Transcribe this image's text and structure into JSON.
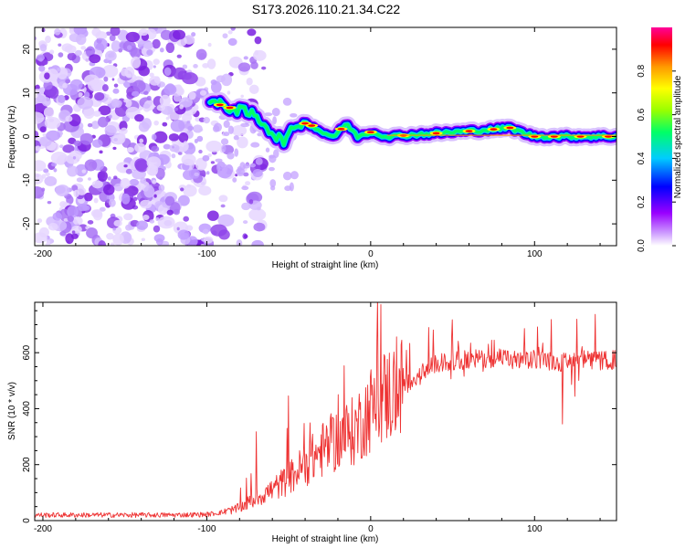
{
  "figure": {
    "title": "S173.2026.110.21.34.C22"
  },
  "chart_data": [
    {
      "type": "heatmap",
      "title": "",
      "xlabel": "Height of straight line (km)",
      "ylabel": "Frequency (Hz)",
      "xlim": [
        -205,
        150
      ],
      "ylim": [
        -25,
        25
      ],
      "xticks": [
        -200,
        -100,
        0,
        100
      ],
      "xtick_labels": [
        "-200",
        "-100",
        "0",
        "100"
      ],
      "yticks": [
        20,
        10,
        0,
        -10,
        -20
      ],
      "ytick_labels": [
        "20",
        "10",
        "0",
        "-10",
        "-20"
      ],
      "grid": false,
      "ridge": {
        "description": "high-amplitude spectral ridge",
        "x": [
          -98,
          -90,
          -80,
          -72,
          -65,
          -58,
          -52,
          -45,
          -38,
          -30,
          -22,
          -15,
          -8,
          0,
          10,
          30,
          50,
          70,
          85,
          92,
          100,
          120,
          150
        ],
        "y": [
          8,
          7,
          6,
          5,
          3,
          0,
          -1,
          3,
          3,
          1,
          0,
          3,
          0,
          1,
          0,
          0.5,
          1,
          1.5,
          2,
          1,
          0,
          0,
          0
        ]
      },
      "noise_region_x": [
        -205,
        -85
      ],
      "colorbar": {
        "label": "Normalized spectral amplitude",
        "range": [
          0,
          1
        ],
        "ticks": [
          0,
          0.2,
          0.4,
          0.6,
          0.8
        ],
        "tick_labels": [
          "0.0",
          "0.2",
          "0.4",
          "0.6",
          "0.8"
        ],
        "colormap": [
          "#ffffff",
          "#cc99ff",
          "#9900ff",
          "#0000ff",
          "#00ccff",
          "#00ff66",
          "#99ff00",
          "#ffff00",
          "#ff9900",
          "#ff0000",
          "#ff0099"
        ]
      }
    },
    {
      "type": "line",
      "title": "",
      "xlabel": "Height of straight line (km)",
      "ylabel": "SNR (10 * v/v)",
      "xlim": [
        -205,
        150
      ],
      "ylim": [
        0,
        780
      ],
      "xticks": [
        -200,
        -100,
        0,
        100
      ],
      "xtick_labels": [
        "-200",
        "-100",
        "0",
        "100"
      ],
      "yticks": [
        0,
        200,
        400,
        600
      ],
      "ytick_labels": [
        "0",
        "200",
        "400",
        "600"
      ],
      "grid": false,
      "series": [
        {
          "name": "SNR",
          "color": "#ee3333",
          "x": [
            -205,
            -180,
            -150,
            -120,
            -100,
            -90,
            -80,
            -70,
            -60,
            -50,
            -40,
            -30,
            -20,
            -10,
            0,
            5,
            10,
            20,
            30,
            40,
            50,
            60,
            70,
            80,
            90,
            100,
            110,
            120,
            130,
            140,
            150
          ],
          "y": [
            20,
            20,
            20,
            20,
            22,
            30,
            45,
            80,
            110,
            150,
            200,
            250,
            290,
            320,
            400,
            430,
            450,
            480,
            520,
            560,
            570,
            575,
            580,
            580,
            570,
            575,
            570,
            565,
            575,
            570,
            575
          ]
        }
      ]
    }
  ]
}
